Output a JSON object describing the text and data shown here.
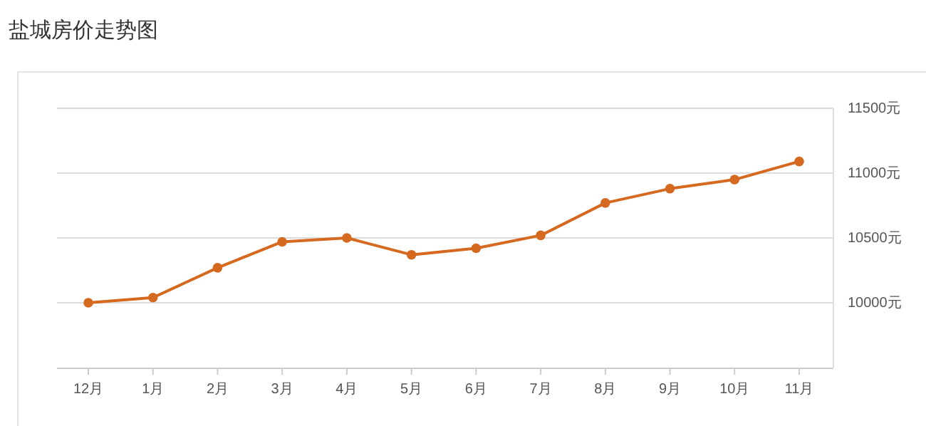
{
  "chart_data": {
    "type": "line",
    "title": "盐城房价走势图",
    "categories": [
      "12月",
      "1月",
      "2月",
      "3月",
      "4月",
      "5月",
      "6月",
      "7月",
      "8月",
      "9月",
      "10月",
      "11月"
    ],
    "series": [
      {
        "color": "#d4691f",
        "values": [
          10000,
          10040,
          10270,
          10470,
          10500,
          10370,
          10420,
          10520,
          10770,
          10880,
          10950,
          11090
        ]
      }
    ],
    "ylim": [
      9500,
      11500
    ],
    "yticks": [
      {
        "value": 10000,
        "label": "10000元"
      },
      {
        "value": 10500,
        "label": "10500元"
      },
      {
        "value": 11000,
        "label": "11000元"
      },
      {
        "value": 11500,
        "label": "11500元"
      }
    ],
    "grid": "y",
    "marker": "circle",
    "line_style": "solid"
  }
}
